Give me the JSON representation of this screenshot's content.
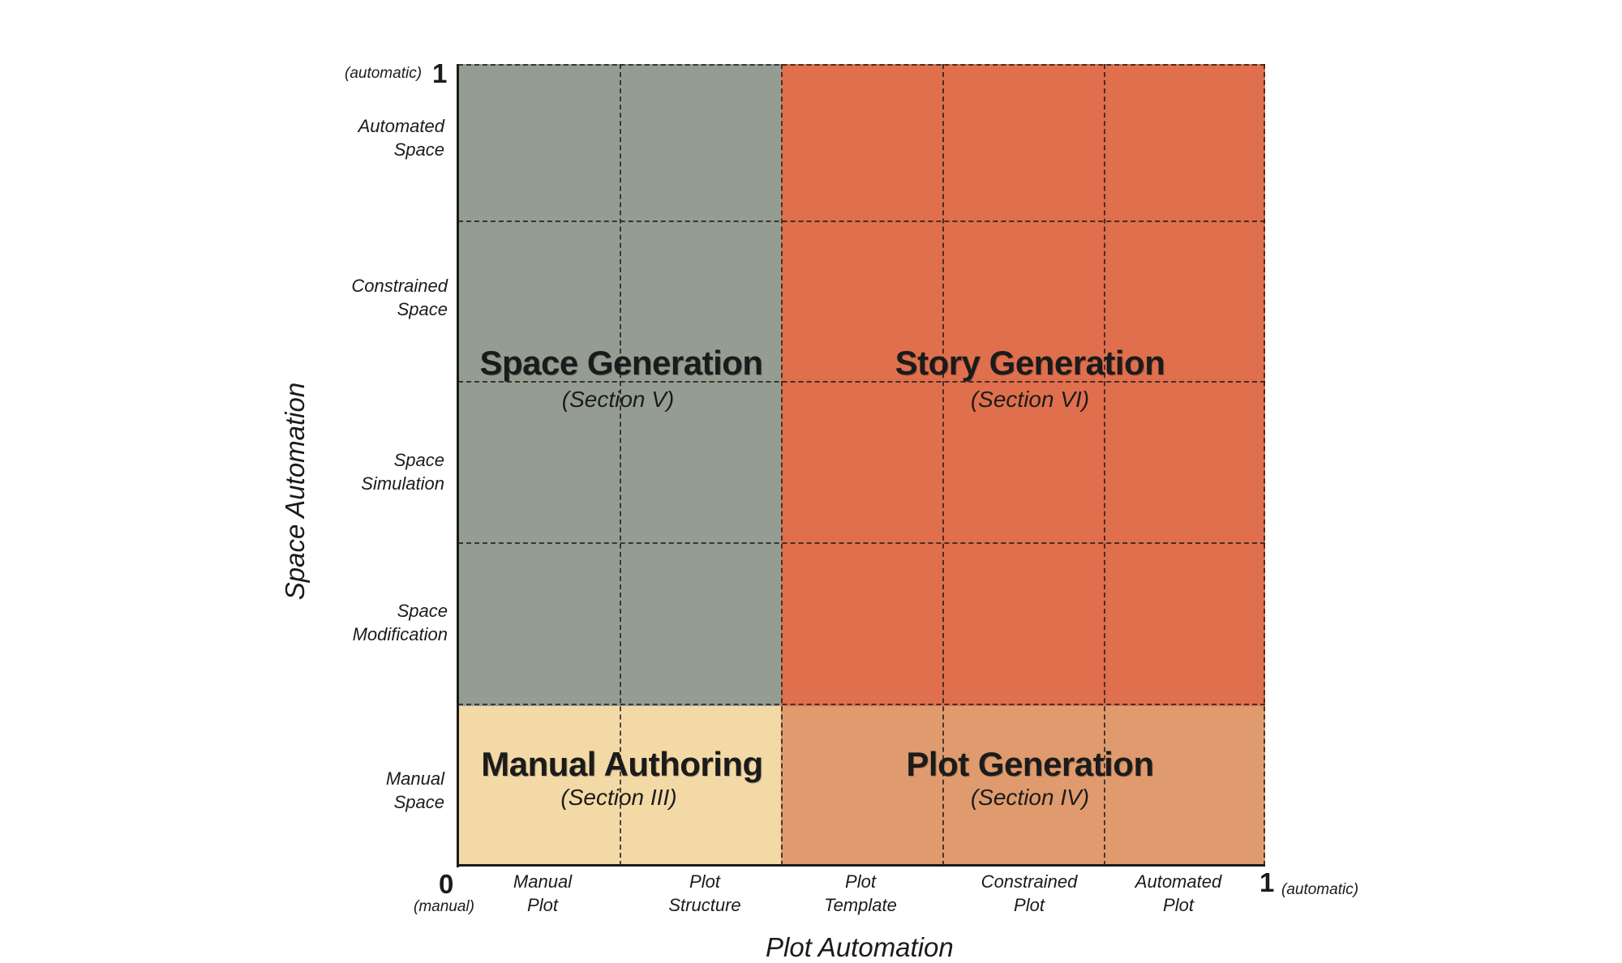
{
  "regions": {
    "space_generation": {
      "title": "Space Generation",
      "subtitle": "(Section V)",
      "color": "#959d92"
    },
    "story_generation": {
      "title": "Story Generation",
      "subtitle": "(Section VI)",
      "color": "#e06f4d"
    },
    "manual_authoring": {
      "title": "Manual Authoring",
      "subtitle": "(Section III)",
      "color": "#f3d9a5"
    },
    "plot_generation": {
      "title": "Plot Generation",
      "subtitle": "(Section IV)",
      "color": "#df9b6e"
    }
  },
  "y_axis": {
    "title": "Space Automation",
    "top_value": "1",
    "top_note": "(automatic)",
    "ticks": [
      {
        "line1": "Automated",
        "line2": "Space"
      },
      {
        "line1": "Constrained",
        "line2": "Space"
      },
      {
        "line1": "Space",
        "line2": "Simulation"
      },
      {
        "line1": "Space",
        "line2": "Modification"
      },
      {
        "line1": "Manual",
        "line2": "Space"
      }
    ]
  },
  "x_axis": {
    "title": "Plot Automation",
    "origin_value": "0",
    "origin_note": "(manual)",
    "end_value": "1",
    "end_note": "(automatic)",
    "ticks": [
      {
        "line1": "Manual",
        "line2": "Plot"
      },
      {
        "line1": "Plot",
        "line2": "Structure"
      },
      {
        "line1": "Plot",
        "line2": "Template"
      },
      {
        "line1": "Constrained",
        "line2": "Plot"
      },
      {
        "line1": "Automated",
        "line2": "Plot"
      }
    ]
  },
  "colors": {
    "gridline": "#1e1e1e",
    "axis": "#1b1b1b",
    "text": "#1b1b1b"
  }
}
